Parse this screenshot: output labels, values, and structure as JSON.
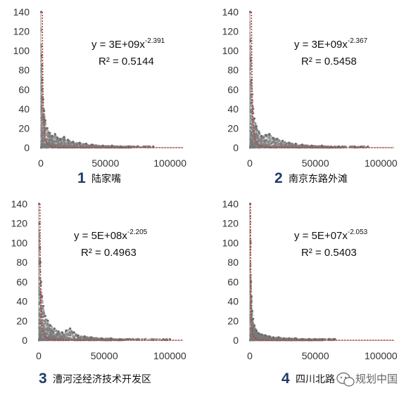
{
  "chart_data": [
    {
      "type": "scatter",
      "number": "1",
      "caption": "陆家嘴",
      "equation": "y = 3E+09x",
      "exponent": "-2.391",
      "r2": "R² = 0.5144",
      "fit": {
        "a": 3000000000,
        "b": -2.391
      },
      "xlim": [
        0,
        110000
      ],
      "ylim": [
        0,
        140
      ],
      "xticks": [
        "0",
        "50000",
        "100000"
      ],
      "yticks": [
        "0",
        "20",
        "40",
        "60",
        "80",
        "100",
        "120",
        "140"
      ],
      "extent": 70000,
      "points": [
        [
          300,
          140
        ],
        [
          600,
          95
        ],
        [
          900,
          85
        ],
        [
          1200,
          70
        ],
        [
          1800,
          50
        ],
        [
          2500,
          38
        ],
        [
          3500,
          28
        ],
        [
          5000,
          20
        ],
        [
          7000,
          15
        ],
        [
          9000,
          12
        ],
        [
          11000,
          14
        ],
        [
          13000,
          10
        ],
        [
          15000,
          9
        ],
        [
          18000,
          11
        ],
        [
          21000,
          8
        ],
        [
          25000,
          6
        ],
        [
          30000,
          5
        ],
        [
          35000,
          4
        ],
        [
          40000,
          3
        ],
        [
          48000,
          2
        ],
        [
          55000,
          2
        ],
        [
          62000,
          1
        ],
        [
          68000,
          1
        ],
        [
          75000,
          1
        ],
        [
          80000,
          1
        ],
        [
          87000,
          1
        ]
      ]
    },
    {
      "type": "scatter",
      "number": "2",
      "caption": "南京东路外滩",
      "equation": "y = 3E+09x",
      "exponent": "-2.367",
      "r2": "R² = 0.5458",
      "fit": {
        "a": 3000000000,
        "b": -2.367
      },
      "xlim": [
        0,
        110000
      ],
      "ylim": [
        0,
        140
      ],
      "xticks": [
        "0",
        "50000",
        "100000"
      ],
      "yticks": [
        "0",
        "20",
        "40",
        "60",
        "80",
        "100",
        "120",
        "140"
      ],
      "extent": 70000,
      "points": [
        [
          300,
          140
        ],
        [
          600,
          110
        ],
        [
          900,
          90
        ],
        [
          1300,
          70
        ],
        [
          1800,
          55
        ],
        [
          2500,
          40
        ],
        [
          3500,
          30
        ],
        [
          5000,
          22
        ],
        [
          7000,
          16
        ],
        [
          9000,
          12
        ],
        [
          12000,
          13
        ],
        [
          15000,
          14
        ],
        [
          18000,
          10
        ],
        [
          21000,
          9
        ],
        [
          25000,
          7
        ],
        [
          30000,
          5
        ],
        [
          35000,
          4
        ],
        [
          40000,
          3
        ],
        [
          47000,
          2
        ],
        [
          55000,
          2
        ],
        [
          62000,
          1
        ],
        [
          68000,
          1
        ],
        [
          80000,
          1
        ],
        [
          85000,
          1
        ],
        [
          90000,
          1
        ]
      ]
    },
    {
      "type": "scatter",
      "number": "3",
      "caption": "漕河泾经济技术开发区",
      "equation": "y = 5E+08x",
      "exponent": "-2.205",
      "r2": "R² = 0.4963",
      "fit": {
        "a": 500000000,
        "b": -2.205
      },
      "xlim": [
        0,
        110000
      ],
      "ylim": [
        0,
        140
      ],
      "xticks": [
        "0",
        "50000",
        "100000"
      ],
      "yticks": [
        "0",
        "20",
        "40",
        "60",
        "80",
        "100",
        "120",
        "140"
      ],
      "extent": 65000,
      "points": [
        [
          300,
          140
        ],
        [
          600,
          120
        ],
        [
          900,
          95
        ],
        [
          1300,
          80
        ],
        [
          1800,
          60
        ],
        [
          2500,
          45
        ],
        [
          3500,
          35
        ],
        [
          5000,
          25
        ],
        [
          7000,
          20
        ],
        [
          9000,
          15
        ],
        [
          12000,
          12
        ],
        [
          15000,
          9
        ],
        [
          18000,
          8
        ],
        [
          21000,
          10
        ],
        [
          24000,
          12
        ],
        [
          27000,
          8
        ],
        [
          30000,
          5
        ],
        [
          35000,
          4
        ],
        [
          40000,
          3
        ],
        [
          48000,
          2
        ],
        [
          55000,
          2
        ],
        [
          62000,
          1
        ],
        [
          68000,
          1
        ],
        [
          95000,
          1
        ],
        [
          100000,
          1
        ]
      ]
    },
    {
      "type": "scatter",
      "number": "4",
      "caption": "四川北路",
      "equation": "y = 5E+07x",
      "exponent": "-2.053",
      "r2": "R² = 0.5403",
      "fit": {
        "a": 50000000,
        "b": -2.053
      },
      "xlim": [
        0,
        110000
      ],
      "ylim": [
        0,
        140
      ],
      "xticks": [
        "0",
        "50000",
        "100000"
      ],
      "yticks": [
        "0",
        "20",
        "40",
        "60",
        "80",
        "100",
        "120",
        "140"
      ],
      "extent": 55000,
      "points": [
        [
          300,
          140
        ],
        [
          600,
          100
        ],
        [
          900,
          60
        ],
        [
          1300,
          45
        ],
        [
          1800,
          30
        ],
        [
          2500,
          22
        ],
        [
          3500,
          15
        ],
        [
          5000,
          10
        ],
        [
          7000,
          7
        ],
        [
          9000,
          6
        ],
        [
          12000,
          5
        ],
        [
          15000,
          4
        ],
        [
          18000,
          3
        ],
        [
          22000,
          3
        ],
        [
          26000,
          2
        ],
        [
          30000,
          2
        ],
        [
          35000,
          2
        ],
        [
          40000,
          1
        ],
        [
          45000,
          1
        ],
        [
          50000,
          1
        ],
        [
          55000,
          1
        ],
        [
          60000,
          1
        ],
        [
          65000,
          1
        ]
      ]
    }
  ],
  "watermark": "规划中国",
  "colors": {
    "scatter": "#7a7a7a",
    "fit": "#c0392b",
    "axis": "#9a9a9a",
    "number": "#1f3a68"
  }
}
